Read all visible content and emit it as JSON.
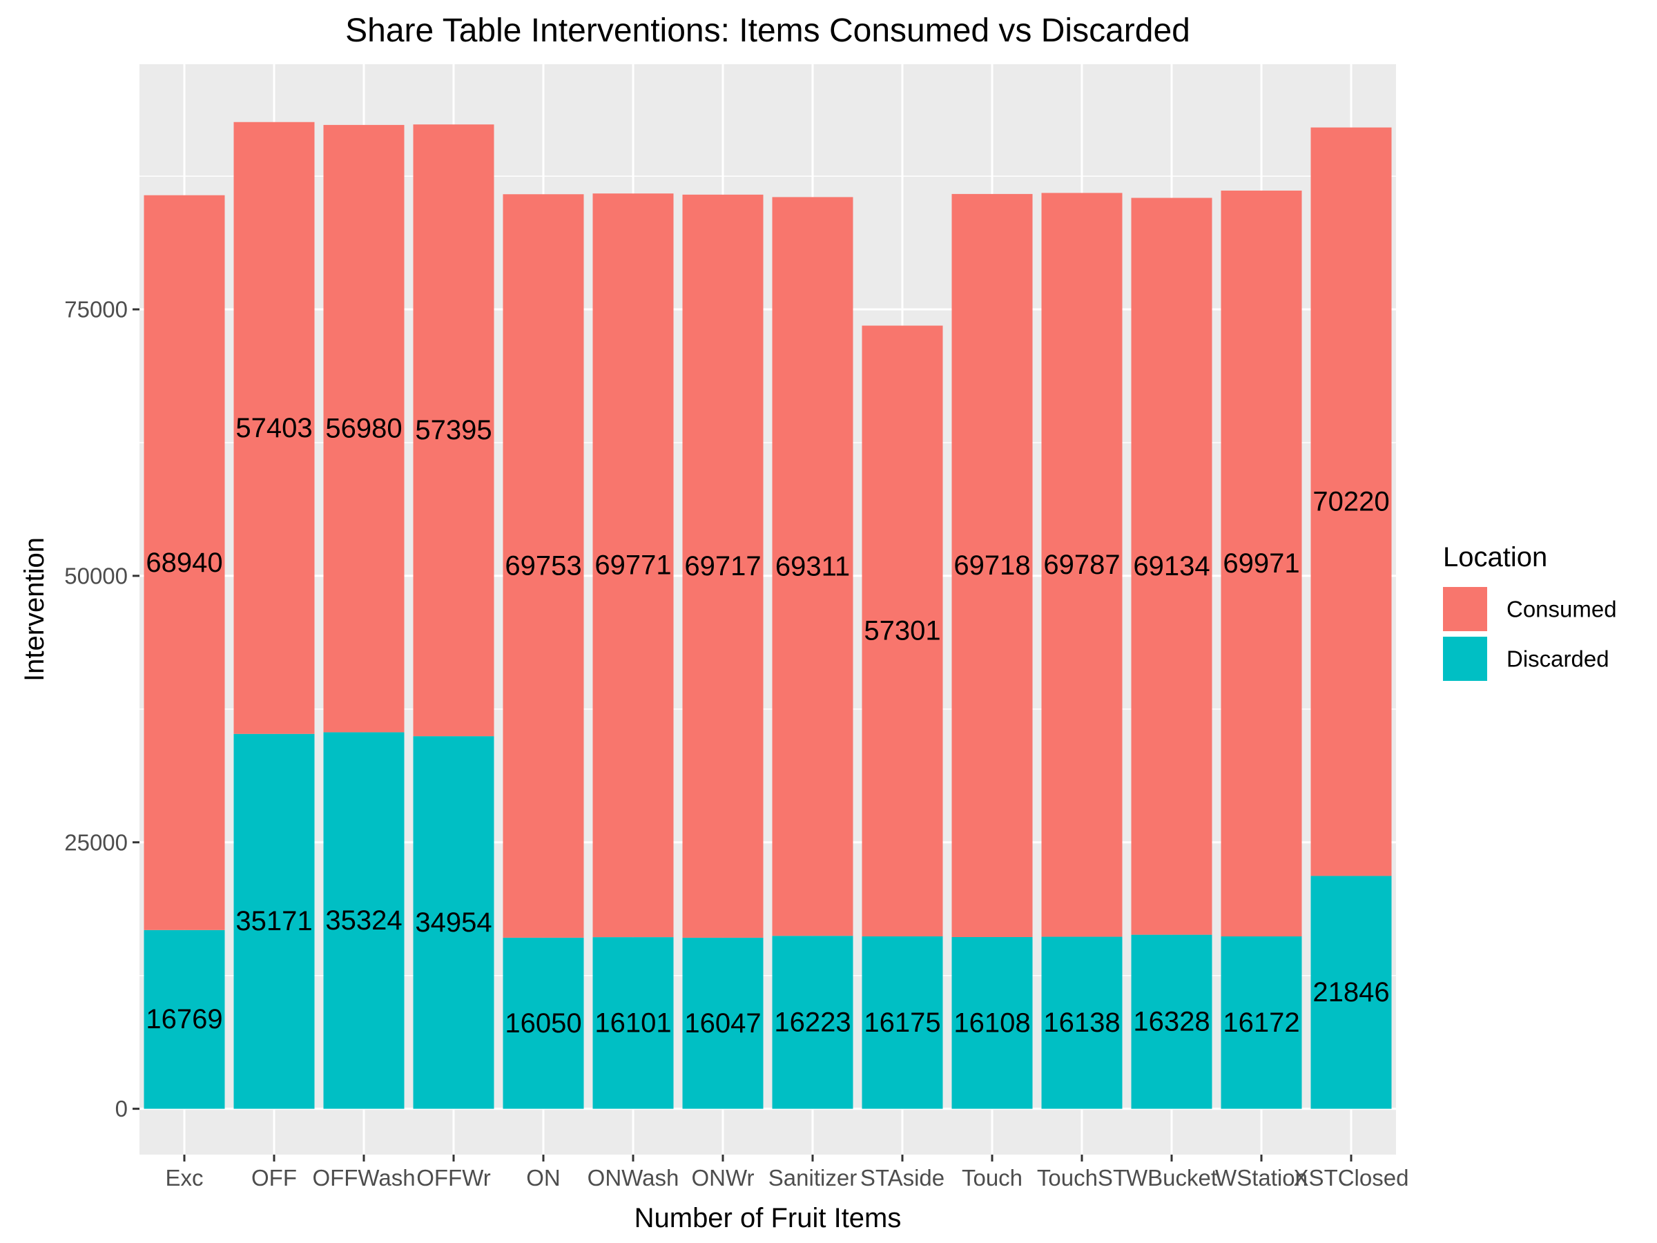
{
  "chart_data": {
    "type": "bar",
    "stacked": true,
    "title": "Share Table Interventions: Items Consumed vs Discarded",
    "xlabel": "Number of Fruit Items",
    "ylabel": "Intervention",
    "categories": [
      "Exc",
      "OFF",
      "OFFWash",
      "OFFWr",
      "ON",
      "ONWash",
      "ONWr",
      "Sanitizer",
      "STAside",
      "Touch",
      "TouchST",
      "WBucket",
      "WStation",
      "XSTClosed"
    ],
    "series": [
      {
        "name": "Consumed",
        "values": [
          68940,
          57403,
          56980,
          57395,
          69753,
          69771,
          69717,
          69311,
          57301,
          69718,
          69787,
          69134,
          69971,
          70220
        ],
        "labels": [
          "68940",
          "57403",
          "56980",
          "57395",
          "69753",
          "69771",
          "69717",
          "69311",
          "57301",
          "69718",
          "69787",
          "69134",
          "69971",
          "70220"
        ]
      },
      {
        "name": "Discarded",
        "values": [
          16769,
          35171,
          35324,
          34954,
          16050,
          16101,
          16047,
          16223,
          16175,
          16108,
          16138,
          16328,
          16172,
          21846
        ],
        "labels": [
          "16769",
          "35171",
          "35324",
          "34954",
          "16050",
          "16101",
          "16047",
          "16223",
          "16175",
          "16108",
          "16138",
          "16328",
          "16172",
          "21846"
        ]
      }
    ],
    "yticks": [
      0,
      25000,
      50000,
      75000
    ],
    "ytick_labels": [
      "0",
      "25000",
      "50000",
      "75000"
    ],
    "ylim": [
      -4300,
      98000
    ],
    "grid": true,
    "legend": {
      "title": "Location",
      "position": "right",
      "entries": [
        "Consumed",
        "Discarded"
      ]
    },
    "colors": {
      "Consumed": "#F8766D",
      "Discarded": "#00BFC4",
      "panel": "#EBEBEB",
      "grid": "#FFFFFF"
    }
  }
}
